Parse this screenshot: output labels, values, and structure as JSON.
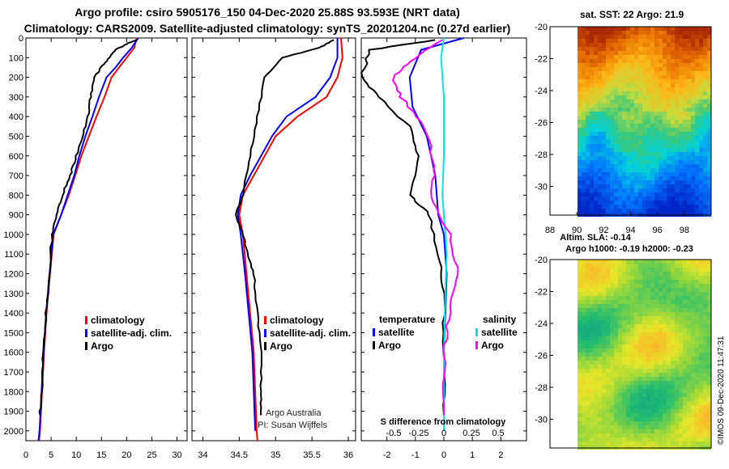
{
  "header": {
    "line1": "Argo profile: csiro 5905176_150 04-Dec-2020 25.88S 93.593E (NRT data)",
    "line2": "Climatology: CARS2009. Satellite-adjusted climatology: synTS_20201204.nc (0.27d earlier)"
  },
  "colors": {
    "climatology": "#ff0000",
    "satellite": "#0000ff",
    "argo": "#000000",
    "sat_salinity": "#00e5ee",
    "argo_salinity": "#ff00ff"
  },
  "chart_data": [
    {
      "type": "line",
      "name": "temperature-profile",
      "xlim": [
        0,
        32
      ],
      "ylim": [
        0,
        2050
      ],
      "x_ticks": [
        "0",
        "5",
        "10",
        "15",
        "20",
        "25",
        "30"
      ],
      "y_ticks": [
        "0",
        "100",
        "200",
        "300",
        "400",
        "500",
        "600",
        "700",
        "800",
        "900",
        "1000",
        "1100",
        "1200",
        "1300",
        "1400",
        "1500",
        "1600",
        "1700",
        "1800",
        "1900",
        "2000"
      ],
      "legend": [
        "climatology",
        "satellite-adj. clim.",
        "Argo"
      ],
      "series": [
        {
          "name": "climatology",
          "points": [
            [
              22.0,
              0
            ],
            [
              21.5,
              50
            ],
            [
              20.0,
              100
            ],
            [
              18.5,
              150
            ],
            [
              17.0,
              200
            ],
            [
              15.6,
              300
            ],
            [
              14.0,
              400
            ],
            [
              12.5,
              500
            ],
            [
              11.0,
              600
            ],
            [
              9.8,
              700
            ],
            [
              8.5,
              800
            ],
            [
              7.0,
              900
            ],
            [
              5.5,
              1000
            ],
            [
              4.8,
              1200
            ],
            [
              4.1,
              1400
            ],
            [
              3.6,
              1600
            ],
            [
              3.2,
              1800
            ],
            [
              2.8,
              2000
            ],
            [
              2.6,
              2050
            ]
          ]
        },
        {
          "name": "satellite-adj. clim.",
          "points": [
            [
              22.3,
              0
            ],
            [
              21.0,
              50
            ],
            [
              19.3,
              100
            ],
            [
              17.8,
              150
            ],
            [
              16.0,
              200
            ],
            [
              14.5,
              300
            ],
            [
              13.2,
              400
            ],
            [
              11.8,
              500
            ],
            [
              10.6,
              600
            ],
            [
              9.6,
              700
            ],
            [
              8.3,
              800
            ],
            [
              7.0,
              900
            ],
            [
              5.4,
              1000
            ],
            [
              4.7,
              1200
            ],
            [
              4.0,
              1400
            ],
            [
              3.5,
              1600
            ],
            [
              3.1,
              1800
            ],
            [
              2.7,
              2000
            ],
            [
              2.5,
              2050
            ]
          ]
        },
        {
          "name": "Argo",
          "points": [
            [
              22.0,
              10
            ],
            [
              20.0,
              30
            ],
            [
              17.8,
              60
            ],
            [
              16.5,
              100
            ],
            [
              15.0,
              150
            ],
            [
              13.5,
              200
            ],
            [
              12.8,
              300
            ],
            [
              12.3,
              400
            ],
            [
              11.2,
              500
            ],
            [
              10.0,
              600
            ],
            [
              8.8,
              700
            ],
            [
              7.2,
              800
            ],
            [
              6.2,
              900
            ],
            [
              5.2,
              1000
            ],
            [
              4.6,
              1200
            ],
            [
              4.0,
              1400
            ],
            [
              3.5,
              1600
            ],
            [
              3.1,
              1800
            ],
            [
              2.8,
              1920
            ]
          ]
        }
      ]
    },
    {
      "type": "line",
      "name": "salinity-profile",
      "xlim": [
        33.85,
        36.1
      ],
      "ylim": [
        0,
        2050
      ],
      "x_ticks": [
        "34",
        "34.5",
        "35",
        "35.5",
        "36"
      ],
      "legend": [
        "climatology",
        "satellite-adj. clim.",
        "Argo"
      ],
      "series": [
        {
          "name": "climatology",
          "points": [
            [
              35.9,
              0
            ],
            [
              35.92,
              100
            ],
            [
              35.85,
              200
            ],
            [
              35.7,
              300
            ],
            [
              35.3,
              400
            ],
            [
              35.0,
              500
            ],
            [
              34.85,
              600
            ],
            [
              34.7,
              700
            ],
            [
              34.55,
              800
            ],
            [
              34.5,
              900
            ],
            [
              34.55,
              1000
            ],
            [
              34.6,
              1200
            ],
            [
              34.65,
              1400
            ],
            [
              34.7,
              1600
            ],
            [
              34.72,
              1800
            ],
            [
              34.74,
              2000
            ],
            [
              34.75,
              2050
            ]
          ]
        },
        {
          "name": "satellite-adj. clim.",
          "points": [
            [
              35.85,
              0
            ],
            [
              35.85,
              100
            ],
            [
              35.75,
              200
            ],
            [
              35.55,
              300
            ],
            [
              35.15,
              400
            ],
            [
              34.95,
              500
            ],
            [
              34.8,
              600
            ],
            [
              34.65,
              700
            ],
            [
              34.52,
              800
            ],
            [
              34.48,
              900
            ],
            [
              34.52,
              1000
            ],
            [
              34.58,
              1200
            ],
            [
              34.63,
              1400
            ],
            [
              34.68,
              1600
            ],
            [
              34.7,
              1800
            ],
            [
              34.72,
              2000
            ]
          ]
        },
        {
          "name": "Argo",
          "points": [
            [
              35.8,
              10
            ],
            [
              35.6,
              50
            ],
            [
              35.1,
              100
            ],
            [
              34.85,
              200
            ],
            [
              34.75,
              400
            ],
            [
              34.65,
              600
            ],
            [
              34.55,
              800
            ],
            [
              34.45,
              900
            ],
            [
              34.55,
              1000
            ],
            [
              34.62,
              1100
            ],
            [
              34.7,
              1200
            ],
            [
              34.75,
              1400
            ],
            [
              34.8,
              1600
            ],
            [
              34.8,
              1800
            ],
            [
              34.8,
              1920
            ]
          ]
        }
      ]
    },
    {
      "type": "line",
      "name": "difference-from-climatology",
      "xlim": [
        -2.9,
        2.9
      ],
      "ylim": [
        0,
        2050
      ],
      "x_ticks": [
        "-2",
        "-1",
        "0",
        "1",
        "2"
      ],
      "top_axis_label": "S difference from climatology",
      "top_ticks": [
        "-0.5",
        "-0.25",
        "0",
        "0.25",
        "0.5"
      ],
      "legend_headers": [
        "temperature",
        "salinity"
      ],
      "legend": [
        "satellite",
        "Argo",
        "satellite",
        "Argo"
      ],
      "series": [
        {
          "name": "temperature satellite",
          "points": [
            [
              0.7,
              0
            ],
            [
              -0.8,
              60
            ],
            [
              -1.2,
              200
            ],
            [
              -1.1,
              350
            ],
            [
              -0.6,
              500
            ],
            [
              -0.3,
              700
            ],
            [
              -0.2,
              900
            ],
            [
              0.0,
              1000
            ],
            [
              0.1,
              1200
            ],
            [
              0.05,
              1400
            ],
            [
              0.0,
              1600
            ],
            [
              0.0,
              2000
            ]
          ]
        },
        {
          "name": "temperature Argo",
          "points": [
            [
              -0.3,
              10
            ],
            [
              -2.6,
              60
            ],
            [
              -2.9,
              200
            ],
            [
              -2.3,
              300
            ],
            [
              -1.2,
              450
            ],
            [
              -0.9,
              600
            ],
            [
              -1.2,
              800
            ],
            [
              -0.5,
              900
            ],
            [
              -0.2,
              1100
            ],
            [
              0.0,
              1300
            ],
            [
              0.0,
              1600
            ],
            [
              0.0,
              1920
            ]
          ]
        },
        {
          "name": "salinity satellite",
          "points": [
            [
              0.0,
              0
            ],
            [
              -0.1,
              100
            ],
            [
              0.0,
              300
            ],
            [
              0.0,
              600
            ],
            [
              -0.05,
              800
            ],
            [
              0.1,
              1100
            ],
            [
              0.05,
              1300
            ],
            [
              0.0,
              1600
            ],
            [
              0.0,
              2000
            ]
          ]
        },
        {
          "name": "salinity Argo",
          "points": [
            [
              -0.1,
              10
            ],
            [
              -1.2,
              120
            ],
            [
              -1.8,
              200
            ],
            [
              -1.5,
              300
            ],
            [
              -0.7,
              450
            ],
            [
              -0.3,
              650
            ],
            [
              -0.5,
              800
            ],
            [
              0.2,
              1000
            ],
            [
              0.5,
              1200
            ],
            [
              0.2,
              1400
            ],
            [
              0.0,
              1600
            ],
            [
              0.0,
              1920
            ]
          ]
        }
      ]
    },
    {
      "type": "heatmap",
      "name": "sst-map",
      "title": "sat. SST: 22 Argo: 21.9",
      "xlim": [
        88,
        100
      ],
      "ylim": [
        -31.8,
        -20
      ],
      "x_ticks": [
        "88",
        "90",
        "92",
        "94",
        "96",
        "98"
      ],
      "y_ticks": [
        "-20",
        "-22",
        "-24",
        "-26",
        "-28",
        "-30"
      ]
    },
    {
      "type": "heatmap",
      "name": "sla-map",
      "title": "Altim. SLA: -0.14",
      "subtitle": "Argo h1000: -0.19 h2000: -0.23",
      "xlim": [
        88,
        100
      ],
      "ylim": [
        -31.8,
        -20
      ],
      "y_ticks": [
        "-20",
        "-22",
        "-24",
        "-26",
        "-28",
        "-30"
      ]
    }
  ],
  "footer": {
    "credit1": "Argo Australia",
    "credit2": "PI: Susan Wijffels",
    "stamp": "©IMOS 09-Dec-2020 11:47:31"
  }
}
